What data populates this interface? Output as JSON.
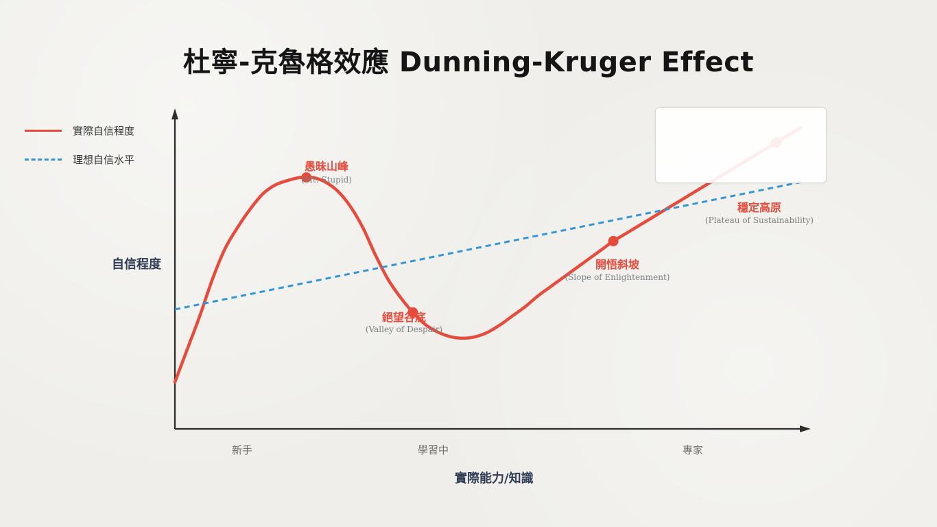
{
  "title": "杜寧-克魯格效應 Dunning-Kruger Effect",
  "colors": {
    "actual": "#e64b3c",
    "ideal": "#3496d4",
    "axis": "#2d2d2d",
    "label_text": "#2f3d55"
  },
  "legend": {
    "placement": "top-right",
    "items": [
      "實際自信程度",
      "理想自信水平"
    ]
  },
  "chart_data": {
    "type": "line",
    "xlabel": "實際能力/知識",
    "ylabel": "自信程度",
    "x_ticks": [
      "新手",
      "學習中",
      "專家"
    ],
    "xlim": [
      0,
      100
    ],
    "ylim": [
      0,
      100
    ],
    "grid": false,
    "series": [
      {
        "name": "實際自信程度",
        "style": "solid",
        "color": "#e64b3c",
        "x": [
          0,
          2,
          4,
          6,
          8,
          10,
          12,
          14,
          16,
          18,
          20,
          22,
          24,
          26,
          28,
          30,
          32,
          34,
          36,
          38,
          40,
          42,
          44,
          46,
          48,
          50,
          52,
          54,
          56,
          58,
          60,
          62,
          64,
          66,
          68,
          70,
          72,
          74,
          76,
          78,
          80,
          82,
          84,
          86,
          88,
          90,
          92,
          94,
          96,
          98,
          100
        ],
        "y": [
          12,
          23,
          34,
          46,
          56,
          63,
          69,
          74,
          77,
          78.5,
          79.5,
          79.5,
          78,
          75,
          70,
          63,
          54,
          46,
          40,
          35,
          31,
          28.5,
          27,
          26.5,
          27,
          28.5,
          31,
          34,
          37,
          40.5,
          43.5,
          46.5,
          49.5,
          52.5,
          55.5,
          58.5,
          61,
          63.5,
          66,
          68.5,
          71,
          73.5,
          76,
          78.5,
          81,
          83.5,
          86,
          88.5,
          91,
          93.5,
          96
        ]
      },
      {
        "name": "理想自信水平",
        "style": "dashed",
        "color": "#3496d4",
        "x": [
          0,
          100
        ],
        "y": [
          36,
          78
        ]
      }
    ],
    "annotations": [
      {
        "label": "愚昧山峰",
        "sub": "(Mt. Stupid)",
        "x": 21,
        "y": 79.5
      },
      {
        "label": "絕望谷底",
        "sub": "(Valley of Despair)",
        "x": 38,
        "y": 35
      },
      {
        "label": "開悟斜坡",
        "sub": "(Slope of Enlightenment)",
        "x": 70,
        "y": 58.5
      },
      {
        "label": "穩定高原",
        "sub": "(Plateau of Sustainability)",
        "x": 96,
        "y": 91
      }
    ]
  }
}
